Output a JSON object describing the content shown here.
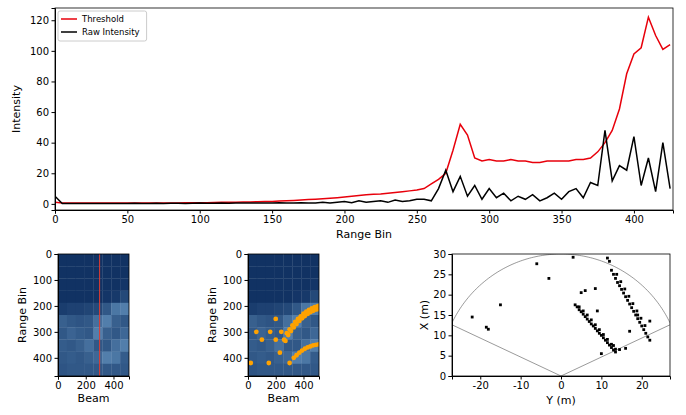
{
  "chart_data": [
    {
      "type": "line",
      "x_label": "Range Bin",
      "y_label": "Intensity",
      "x": [
        0,
        5,
        10,
        15,
        20,
        25,
        30,
        35,
        40,
        45,
        50,
        55,
        60,
        65,
        70,
        75,
        80,
        85,
        90,
        95,
        100,
        105,
        110,
        115,
        120,
        125,
        130,
        135,
        140,
        145,
        150,
        155,
        160,
        165,
        170,
        175,
        180,
        185,
        190,
        195,
        200,
        205,
        210,
        215,
        220,
        225,
        230,
        235,
        240,
        245,
        250,
        255,
        260,
        265,
        270,
        275,
        280,
        285,
        290,
        295,
        300,
        305,
        310,
        315,
        320,
        325,
        330,
        335,
        340,
        345,
        350,
        355,
        360,
        365,
        370,
        375,
        380,
        385,
        390,
        395,
        400,
        405,
        410,
        415,
        420,
        425
      ],
      "series": [
        {
          "name": "Threshold",
          "color": "#e8000b",
          "values": [
            1,
            0.5,
            0.5,
            0.5,
            0.5,
            0.5,
            0.5,
            0.5,
            0.5,
            0.5,
            0.5,
            0.5,
            0.5,
            0.5,
            0.5,
            0.6,
            0.6,
            0.6,
            0.7,
            0.7,
            0.8,
            0.8,
            0.9,
            1,
            1,
            1.1,
            1.2,
            1.3,
            1.4,
            1.5,
            1.6,
            1.8,
            2,
            2.2,
            2.5,
            2.8,
            3,
            3.3,
            3.6,
            4,
            4.5,
            5,
            5.5,
            6,
            6.3,
            6.5,
            7,
            7.5,
            8,
            8.5,
            9,
            10,
            13,
            16,
            20,
            35,
            52,
            45,
            30,
            28,
            29,
            28,
            28,
            29,
            28,
            28,
            27,
            27,
            28,
            28,
            28,
            28,
            29,
            29,
            30,
            34,
            40,
            48,
            62,
            85,
            98,
            102,
            122,
            110,
            101,
            104
          ]
        },
        {
          "name": "Raw Intensity",
          "color": "#000000",
          "values": [
            5,
            0.2,
            0.3,
            0.2,
            0.3,
            0.2,
            0.3,
            0.3,
            0.2,
            0.3,
            0.3,
            0.4,
            0.3,
            0.3,
            0.4,
            0.3,
            0.4,
            0.4,
            0.3,
            0.4,
            0.5,
            0.4,
            0.4,
            0.5,
            0.4,
            0.5,
            0.5,
            0.6,
            0.5,
            0.5,
            0.6,
            0.7,
            0.5,
            0.6,
            0.8,
            0.6,
            0.5,
            1,
            0.5,
            1,
            1.5,
            0.8,
            2,
            1,
            1.5,
            2,
            1,
            2.5,
            1.5,
            2,
            3,
            3,
            2,
            10,
            22,
            8,
            18,
            5,
            12,
            3,
            10,
            4,
            7,
            2,
            5,
            3,
            6,
            2,
            4,
            7,
            3,
            8,
            10,
            4,
            14,
            12,
            48,
            15,
            25,
            22,
            44,
            12,
            30,
            8,
            40,
            10
          ]
        }
      ],
      "xlim": [
        0,
        427
      ],
      "ylim": [
        -4,
        128
      ],
      "xticks": [
        0,
        50,
        100,
        150,
        200,
        250,
        300,
        350,
        400
      ],
      "yticks": [
        0,
        20,
        40,
        60,
        80,
        100,
        120
      ],
      "legend": "upper left"
    },
    {
      "type": "heatmap",
      "x_label": "Beam",
      "y_label": "Range Bin",
      "xlim": [
        0,
        512
      ],
      "ylim": [
        470,
        0
      ],
      "xticks": [
        0,
        200,
        400
      ],
      "yticks": [
        0,
        100,
        200,
        300,
        400
      ],
      "cells": [
        [
          2,
          2,
          2,
          2,
          2,
          2,
          2,
          2
        ],
        [
          2,
          2,
          2,
          2,
          2,
          2,
          2,
          2
        ],
        [
          2,
          2,
          2,
          2,
          2,
          2,
          2,
          3
        ],
        [
          2,
          2,
          2,
          2,
          2,
          3,
          4,
          8
        ],
        [
          5,
          6,
          6,
          7,
          8,
          12,
          20,
          22
        ],
        [
          14,
          12,
          11,
          12,
          18,
          22,
          14,
          12
        ],
        [
          12,
          15,
          13,
          12,
          22,
          14,
          12,
          16
        ],
        [
          13,
          12,
          14,
          18,
          12,
          12,
          18,
          22
        ],
        [
          12,
          13,
          12,
          14,
          16,
          22,
          20,
          13
        ],
        [
          11,
          12,
          12,
          12,
          12,
          12,
          12,
          12
        ]
      ],
      "cell_range": [
        0,
        40
      ],
      "selected_beam": 300,
      "color": "#e03c31"
    },
    {
      "type": "heatmap",
      "x_label": "Beam",
      "y_label": "Range Bin",
      "xlim": [
        0,
        512
      ],
      "ylim": [
        470,
        0
      ],
      "xticks": [
        0,
        200,
        400
      ],
      "yticks": [
        0,
        100,
        200,
        300,
        400
      ],
      "cells": [
        [
          2,
          2,
          2,
          2,
          2,
          2,
          2,
          2
        ],
        [
          2,
          2,
          2,
          2,
          2,
          2,
          2,
          2
        ],
        [
          2,
          2,
          2,
          2,
          2,
          2,
          2,
          3
        ],
        [
          2,
          2,
          2,
          2,
          2,
          3,
          4,
          8
        ],
        [
          5,
          6,
          6,
          7,
          8,
          12,
          20,
          22
        ],
        [
          14,
          12,
          11,
          12,
          18,
          22,
          14,
          12
        ],
        [
          12,
          15,
          13,
          12,
          22,
          14,
          12,
          16
        ],
        [
          13,
          12,
          14,
          18,
          12,
          12,
          18,
          22
        ],
        [
          12,
          13,
          12,
          14,
          16,
          22,
          20,
          13
        ],
        [
          11,
          12,
          12,
          12,
          12,
          12,
          12,
          12
        ]
      ],
      "cell_range": [
        0,
        40
      ],
      "points": {
        "x": [
          260,
          280,
          300,
          320,
          340,
          360,
          380,
          400,
          420,
          440,
          460,
          480,
          500,
          510,
          270,
          290,
          310,
          330,
          350,
          370,
          390,
          410,
          430,
          450,
          470,
          490,
          505,
          330,
          350,
          370,
          390,
          410,
          430,
          450,
          470,
          490,
          510,
          20,
          60,
          100,
          160,
          200,
          230,
          150,
          300,
          200,
          240
        ],
        "y": [
          330,
          305,
          290,
          275,
          262,
          250,
          240,
          230,
          222,
          215,
          210,
          205,
          202,
          200,
          335,
          312,
          297,
          283,
          270,
          258,
          248,
          239,
          231,
          224,
          219,
          214,
          212,
          400,
          390,
          380,
          372,
          365,
          360,
          356,
          352,
          350,
          348,
          420,
          300,
          330,
          300,
          250,
          380,
          420,
          420,
          330,
          300
        ]
      },
      "color": "#ffa200"
    },
    {
      "type": "scatter",
      "x_label": "Y (m)",
      "y_label": "X (m)",
      "xlim": [
        -27,
        27
      ],
      "ylim": [
        0,
        30
      ],
      "xticks": [
        -20,
        -10,
        0,
        10,
        20
      ],
      "yticks": [
        0,
        5,
        10,
        15,
        20,
        25,
        30
      ],
      "x": [
        3.5,
        4,
        4.5,
        5,
        5.5,
        6,
        6.5,
        7,
        7.5,
        8,
        8.5,
        9,
        9.5,
        10,
        10.5,
        11,
        11.5,
        12,
        12.5,
        13,
        13.5,
        4.5,
        5.5,
        6.5,
        7.5,
        8.5,
        9.5,
        10.5,
        11.5,
        12.5,
        13.5,
        12.5,
        13,
        13.5,
        14,
        14.5,
        15,
        15.5,
        16,
        16.5,
        17,
        17.5,
        18,
        18.5,
        19,
        19.5,
        20,
        20.5,
        21,
        21.5,
        22,
        13.8,
        14.8,
        15.8,
        16.8,
        17.8,
        18.8,
        19.8,
        20.8,
        -18,
        -18.5,
        -22,
        -15,
        -6,
        3,
        -3,
        5,
        6,
        8.5,
        9,
        13,
        14.5,
        16,
        17,
        19,
        11.5,
        12,
        10,
        22
      ],
      "y": [
        17.5,
        17,
        16.3,
        15.8,
        15.2,
        14.6,
        14,
        13.4,
        12.8,
        12.3,
        11.7,
        11.1,
        10.5,
        10,
        9.4,
        8.8,
        8.2,
        7.6,
        7,
        6.4,
        5.9,
        17,
        16,
        15,
        13.8,
        12.6,
        11.4,
        10.2,
        9,
        7.8,
        6.6,
        26,
        25,
        24,
        23,
        22.2,
        21.3,
        20.4,
        19.5,
        18.6,
        17.7,
        16.8,
        15.9,
        15,
        14.1,
        13.2,
        12.3,
        11.4,
        10.5,
        9.6,
        8.8,
        25,
        23.2,
        21.4,
        19.6,
        17.8,
        16,
        14.2,
        12.4,
        11.5,
        12,
        14.5,
        17.5,
        27.6,
        29.2,
        24,
        20.5,
        21,
        21.5,
        16,
        7.5,
        6.5,
        6.8,
        11,
        15,
        29,
        28.2,
        5.5,
        13.5
      ],
      "color": "#000000"
    }
  ]
}
